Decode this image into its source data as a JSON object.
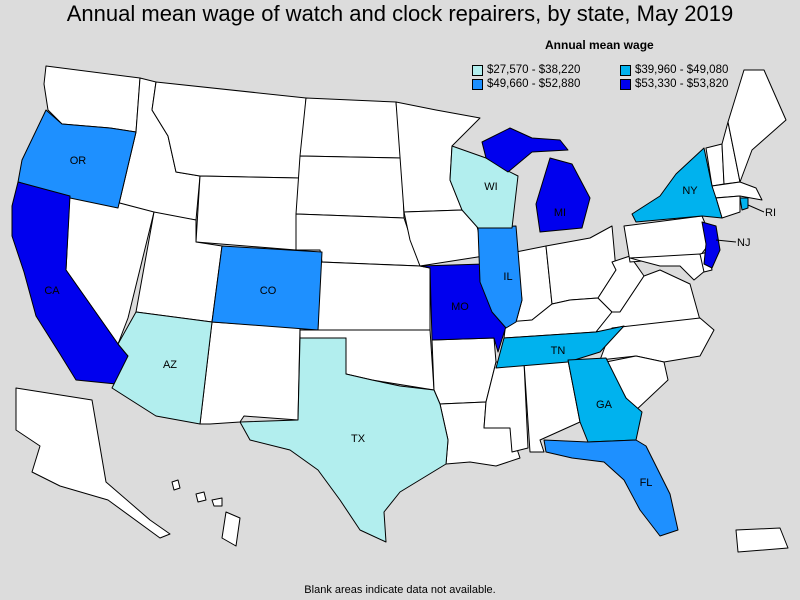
{
  "title": "Annual mean wage of watch and clock repairers, by state, May 2019",
  "legend": {
    "title": "Annual mean wage",
    "items": [
      {
        "label": "$27,570 - $38,220",
        "color": "#b2eeee"
      },
      {
        "label": "$39,960 - $49,080",
        "color": "#00b2ee"
      },
      {
        "label": "$49,660 - $52,880",
        "color": "#1e90ff"
      },
      {
        "label": "$53,330 - $53,820",
        "color": "#0000ee"
      }
    ]
  },
  "footnote": "Blank areas indicate data not available.",
  "colors": {
    "background": "#dcdcdc",
    "no_data": "#ffffff"
  },
  "states": {
    "OR": {
      "label": "OR",
      "tier": 2
    },
    "CA": {
      "label": "CA",
      "tier": 3
    },
    "AZ": {
      "label": "AZ",
      "tier": 0
    },
    "CO": {
      "label": "CO",
      "tier": 2
    },
    "TX": {
      "label": "TX",
      "tier": 0
    },
    "MO": {
      "label": "MO",
      "tier": 3
    },
    "IL": {
      "label": "IL",
      "tier": 2
    },
    "WI": {
      "label": "WI",
      "tier": 0
    },
    "MI": {
      "label": "MI",
      "tier": 3
    },
    "TN": {
      "label": "TN",
      "tier": 1
    },
    "GA": {
      "label": "GA",
      "tier": 1
    },
    "FL": {
      "label": "FL",
      "tier": 2
    },
    "NY": {
      "label": "NY",
      "tier": 1
    },
    "RI": {
      "label": "RI",
      "tier": 1
    },
    "NJ": {
      "label": "NJ",
      "tier": 3
    }
  }
}
